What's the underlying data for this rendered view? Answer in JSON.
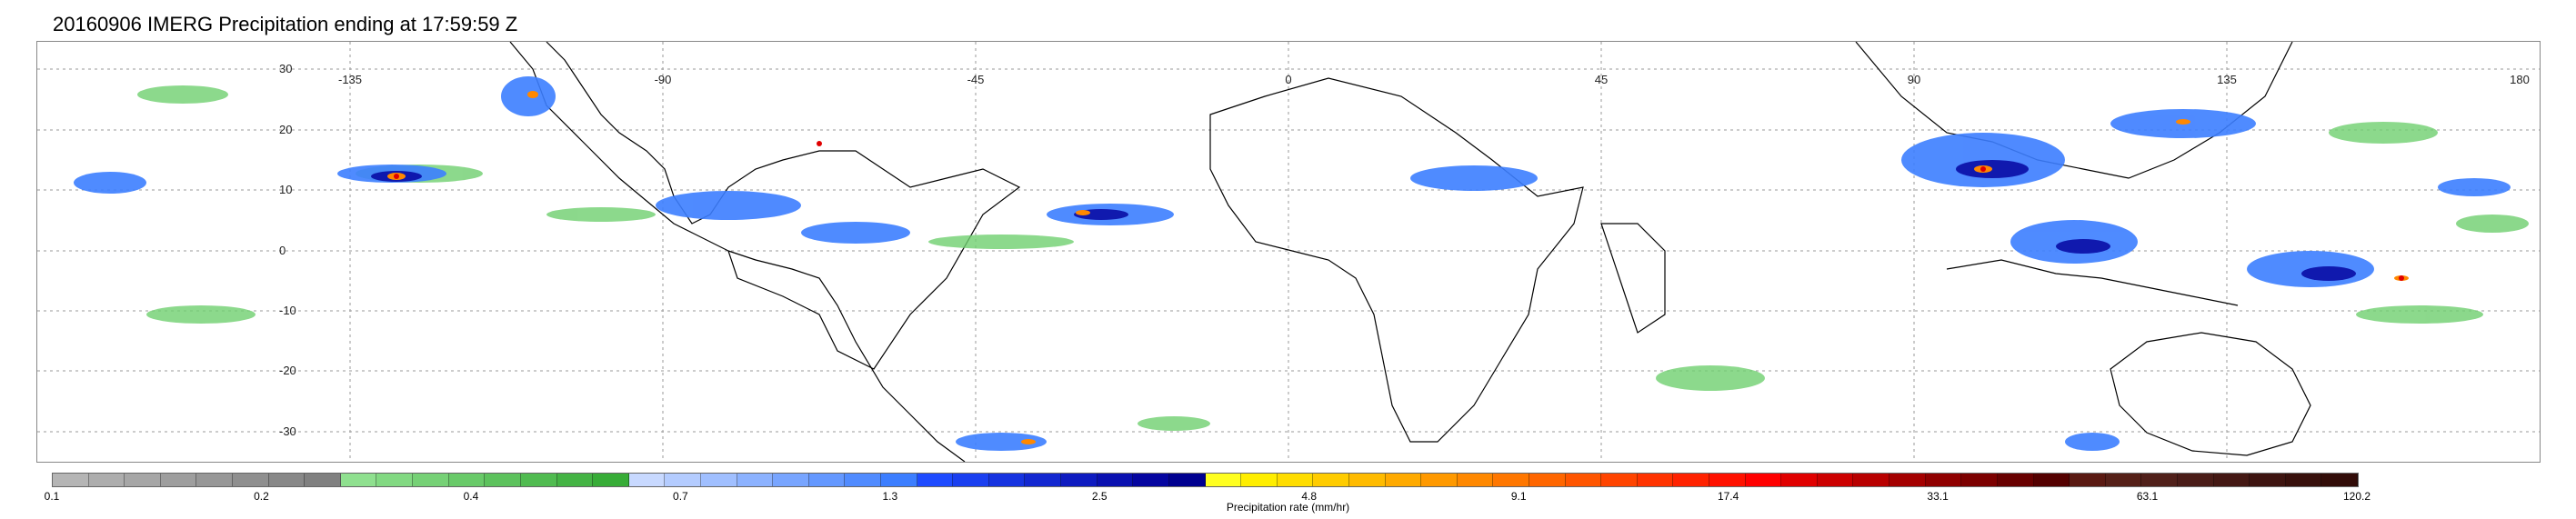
{
  "title": "20160906 IMERG Precipitation ending at 17:59:59 Z",
  "map": {
    "lon_labels": [
      "-135",
      "-90",
      "-45",
      "0",
      "45",
      "90",
      "135",
      "180"
    ],
    "lat_labels": [
      "30",
      "20",
      "10",
      "0",
      "-10",
      "-20",
      "-30"
    ]
  },
  "colorbar": {
    "label": "Precipitation rate (mm/hr)",
    "tick_labels": [
      "0.1",
      "0.2",
      "0.4",
      "0.7",
      "1.3",
      "2.5",
      "4.8",
      "9.1",
      "17.4",
      "33.1",
      "63.1",
      "120.2"
    ],
    "segment_colors": [
      "#b5b5b5",
      "#adadad",
      "#a6a6a6",
      "#9e9e9e",
      "#979797",
      "#8f8f8f",
      "#888888",
      "#808080",
      "#8fe08f",
      "#82d982",
      "#76d176",
      "#69ca69",
      "#5dc25d",
      "#50bb50",
      "#44b344",
      "#37ac37",
      "#c8d9ff",
      "#b4ccff",
      "#a0bfff",
      "#8cb2ff",
      "#78a5ff",
      "#6498ff",
      "#508bff",
      "#3c7eff",
      "#1e4bff",
      "#1a3ff0",
      "#1633e0",
      "#1227d0",
      "#0e1bc0",
      "#0a10b0",
      "#0505a0",
      "#000090",
      "#ffff20",
      "#ffee00",
      "#ffdd00",
      "#ffcc00",
      "#ffbb00",
      "#ffaa00",
      "#ff9900",
      "#ff8800",
      "#ff7700",
      "#ff6600",
      "#ff5500",
      "#ff4400",
      "#ff3300",
      "#ff2200",
      "#ff1100",
      "#ff0000",
      "#e00000",
      "#cc0000",
      "#b80000",
      "#a40000",
      "#900000",
      "#7c0000",
      "#680000",
      "#540000",
      "#5a1a12",
      "#552018",
      "#50201a",
      "#4a1c18",
      "#441814",
      "#3e1410",
      "#38100c",
      "#320c08"
    ]
  }
}
